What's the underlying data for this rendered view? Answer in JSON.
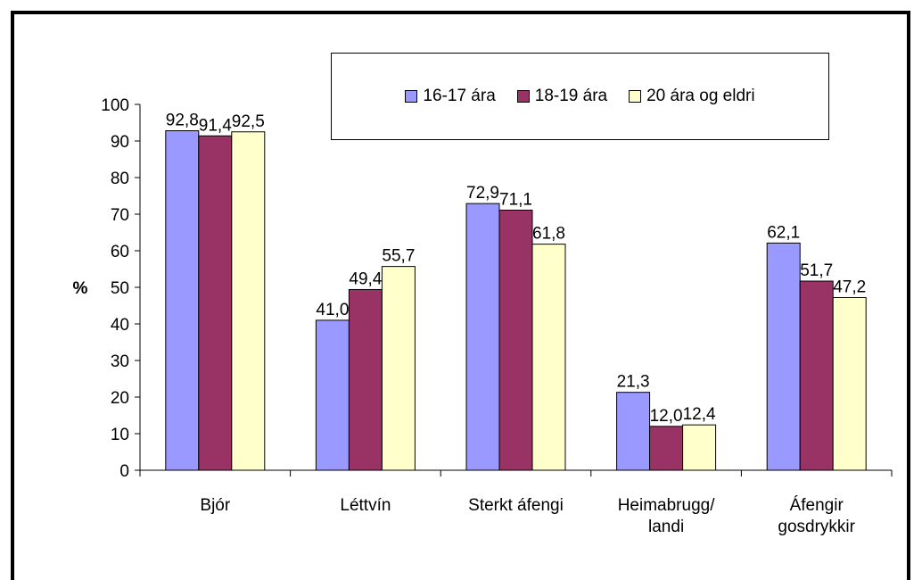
{
  "chart_data": {
    "type": "bar",
    "title": "",
    "xlabel": "",
    "ylabel": "%",
    "ylim": [
      0,
      100
    ],
    "yticks": [
      "0",
      "10",
      "20",
      "30",
      "40",
      "50",
      "60",
      "70",
      "80",
      "90",
      "100"
    ],
    "categories": [
      "Bjór",
      "Léttvín",
      "Sterkt áfengi",
      "Heimabrugg/\nlandi",
      "Áfengir\ngosdrykkir"
    ],
    "series": [
      {
        "name": "16-17 ára",
        "color": "#9999ff",
        "values": [
          92.8,
          41.0,
          72.9,
          21.3,
          62.1
        ],
        "labels": [
          "92,8",
          "41,0",
          "72,9",
          "21,3",
          "62,1"
        ]
      },
      {
        "name": "18-19 ára",
        "color": "#993366",
        "values": [
          91.4,
          49.4,
          71.1,
          12.0,
          51.7
        ],
        "labels": [
          "91,4",
          "49,4",
          "71,1",
          "12,0",
          "51,7"
        ]
      },
      {
        "name": "20 ára og eldri",
        "color": "#ffffcc",
        "values": [
          92.5,
          55.7,
          61.8,
          12.4,
          47.2
        ],
        "labels": [
          "92,5",
          "55,7",
          "61,8",
          "12,4",
          "47,2"
        ]
      }
    ],
    "grid": false,
    "legend_position": "top-right"
  }
}
